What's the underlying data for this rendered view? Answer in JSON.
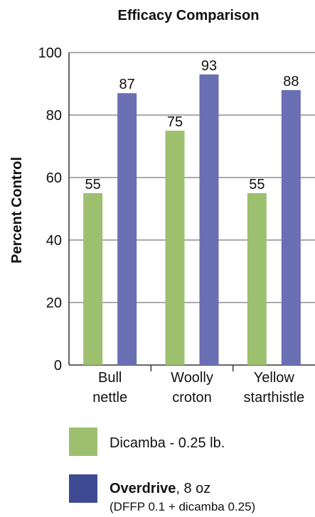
{
  "chart_data": {
    "type": "bar",
    "title": "Efficacy Comparison",
    "ylabel": "Percent Control",
    "xlabel": "",
    "ylim": [
      0,
      100
    ],
    "yticks": [
      0,
      20,
      40,
      60,
      80,
      100
    ],
    "grid": true,
    "categories": [
      [
        "Bull",
        "nettle"
      ],
      [
        "Woolly",
        "croton"
      ],
      [
        "Yellow",
        "starthistle"
      ]
    ],
    "series": [
      {
        "name": "Dicamba - 0.25 lb.",
        "values": [
          55,
          75,
          55
        ],
        "color": "#9dc06f"
      },
      {
        "name": "Overdrive, 8 oz",
        "values": [
          87,
          93,
          88
        ],
        "color": "#6a6fb4"
      }
    ],
    "legend": {
      "placement": "bottom",
      "items": [
        {
          "swatch_color": "#9dc06f",
          "label": "Dicamba - 0.25 lb."
        },
        {
          "swatch_color": "#3f4a94",
          "label_bold": "Overdrive",
          "label_rest": ", 8 oz",
          "sublabel": "(DFFP 0.1 + dicamba 0.25)"
        }
      ]
    }
  }
}
